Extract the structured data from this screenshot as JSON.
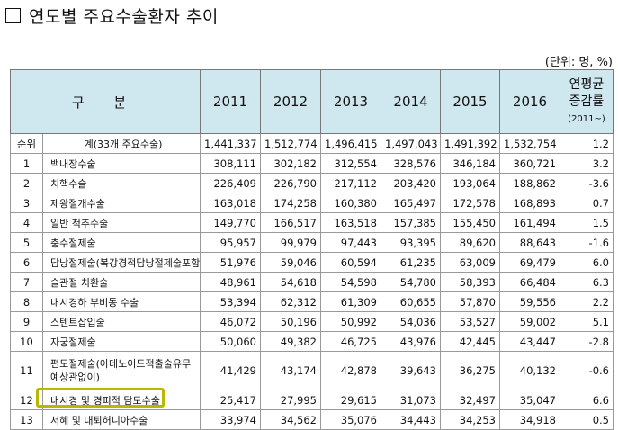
{
  "title": "연도별 주요수술환자 추이",
  "unit": "(단위: 명, %)",
  "header": {
    "gubun": "구 분",
    "years": [
      "2011",
      "2012",
      "2013",
      "2014",
      "2015",
      "2016"
    ],
    "avg_line1": "연평균",
    "avg_line2": "증감률",
    "avg_line3": "(2011~)"
  },
  "rows": [
    {
      "rank": "순위",
      "name": "계(33개 주요수술)",
      "vals": [
        "1,441,337",
        "1,512,774",
        "1,496,415",
        "1,497,043",
        "1,491,392",
        "1,532,754",
        "1.2"
      ]
    },
    {
      "rank": "1",
      "name": "백내장수술",
      "vals": [
        "308,111",
        "302,182",
        "312,554",
        "328,576",
        "346,184",
        "360,721",
        "3.2"
      ]
    },
    {
      "rank": "2",
      "name": "치핵수술",
      "vals": [
        "226,409",
        "226,790",
        "217,112",
        "203,420",
        "193,064",
        "188,862",
        "-3.6"
      ]
    },
    {
      "rank": "3",
      "name": "제왕절개수술",
      "vals": [
        "163,018",
        "174,258",
        "160,380",
        "165,497",
        "172,578",
        "168,893",
        "0.7"
      ]
    },
    {
      "rank": "4",
      "name": "일반 척추수술",
      "vals": [
        "149,770",
        "166,517",
        "163,518",
        "157,385",
        "155,450",
        "161,494",
        "1.5"
      ]
    },
    {
      "rank": "5",
      "name": "충수절제술",
      "vals": [
        "95,957",
        "99,979",
        "97,443",
        "93,395",
        "89,620",
        "88,643",
        "-1.6"
      ]
    },
    {
      "rank": "6",
      "name": "담낭절제술(복강경적담낭절제술포함)",
      "vals": [
        "51,976",
        "59,046",
        "60,594",
        "61,235",
        "63,009",
        "69,479",
        "6.0"
      ]
    },
    {
      "rank": "7",
      "name": "슬관절 치환술",
      "vals": [
        "48,961",
        "54,618",
        "54,598",
        "54,780",
        "58,393",
        "66,484",
        "6.3"
      ]
    },
    {
      "rank": "8",
      "name": "내시경하 부비동 수술",
      "vals": [
        "53,394",
        "62,312",
        "61,309",
        "60,655",
        "57,870",
        "59,556",
        "2.2"
      ]
    },
    {
      "rank": "9",
      "name": "스텐트삽입술",
      "vals": [
        "46,072",
        "50,196",
        "50,992",
        "54,036",
        "53,527",
        "59,002",
        "5.1"
      ]
    },
    {
      "rank": "10",
      "name": "자궁절제술",
      "vals": [
        "50,060",
        "49,382",
        "46,725",
        "43,976",
        "42,445",
        "43,447",
        "-2.8"
      ]
    },
    {
      "rank": "11",
      "name": "편도절제술(아데노이드적출술유무 예상관없이)",
      "vals": [
        "41,429",
        "43,174",
        "42,878",
        "39,643",
        "36,275",
        "40,132",
        "-0.6"
      ]
    },
    {
      "rank": "12",
      "name": "내시경 및 경피적 담도수술",
      "vals": [
        "25,417",
        "27,995",
        "29,615",
        "31,073",
        "32,497",
        "35,047",
        "6.6"
      ]
    },
    {
      "rank": "13",
      "name": "서혜 및 대퇴허니아수술",
      "vals": [
        "33,974",
        "34,562",
        "35,076",
        "34,443",
        "34,253",
        "34,918",
        "0.5"
      ]
    }
  ]
}
